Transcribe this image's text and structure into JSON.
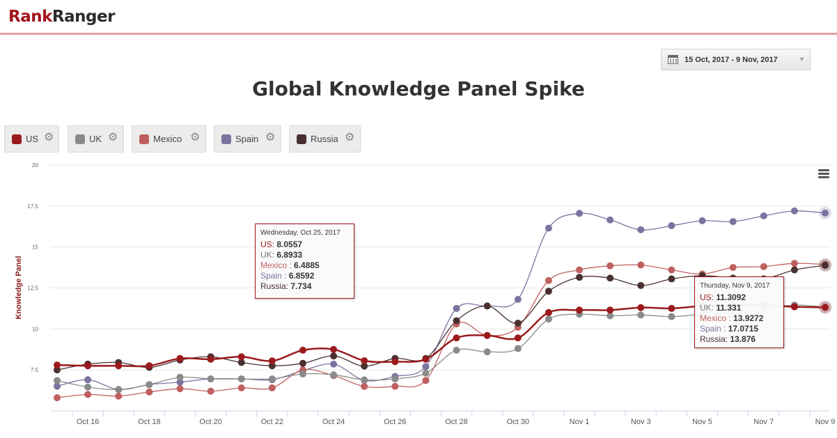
{
  "brand": {
    "part1": "Rank",
    "part2": "Ranger"
  },
  "date_range": "15 Oct, 2017 - 9 Nov, 2017",
  "legend": [
    {
      "name": "US",
      "color": "#9a1a1e"
    },
    {
      "name": "UK",
      "color": "#8a8a8a"
    },
    {
      "name": "Mexico",
      "color": "#c06060"
    },
    {
      "name": "Spain",
      "color": "#7b73a0"
    },
    {
      "name": "Russia",
      "color": "#4a3030"
    }
  ],
  "tooltip1": {
    "header": "Wednesday, Oct 25, 2017",
    "rows": [
      {
        "label": "US: ",
        "value": "8.0557"
      },
      {
        "label": "UK: ",
        "value": "6.8933"
      },
      {
        "label": "Mexico : ",
        "value": "6.4885"
      },
      {
        "label": "Spain : ",
        "value": "6.8592"
      },
      {
        "label": "Russia: ",
        "value": "7.734"
      }
    ]
  },
  "tooltip2": {
    "header": "Thursday, Nov 9, 2017",
    "rows": [
      {
        "label": "US: ",
        "value": "11.3092"
      },
      {
        "label": "UK: ",
        "value": "11.331"
      },
      {
        "label": "Mexico : ",
        "value": "13.9272"
      },
      {
        "label": "Spain : ",
        "value": "17.0715"
      },
      {
        "label": "Russia: ",
        "value": "13.876"
      }
    ]
  },
  "chart_data": {
    "type": "line",
    "title": "Global Knowledge Panel Spike",
    "ylabel": "Knowledge Panel",
    "xlabel": "",
    "ylim": [
      5,
      20
    ],
    "yticks": [
      "20",
      "17.5",
      "15",
      "12.5",
      "10",
      "7.5"
    ],
    "grid": true,
    "x": [
      "Oct 15",
      "Oct 16",
      "Oct 17",
      "Oct 18",
      "Oct 19",
      "Oct 20",
      "Oct 21",
      "Oct 22",
      "Oct 23",
      "Oct 24",
      "Oct 25",
      "Oct 26",
      "Oct 27",
      "Oct 28",
      "Oct 29",
      "Oct 30",
      "Oct 31",
      "Nov 1",
      "Nov 2",
      "Nov 3",
      "Nov 4",
      "Nov 5",
      "Nov 6",
      "Nov 7",
      "Nov 8",
      "Nov 9"
    ],
    "xtick_labels": [
      "Oct 16",
      "Oct 18",
      "Oct 20",
      "Oct 22",
      "Oct 24",
      "Oct 26",
      "Oct 28",
      "Oct 30",
      "Nov 1",
      "Nov 3",
      "Nov 5",
      "Nov 7",
      "Nov 9"
    ],
    "series": [
      {
        "name": "US",
        "color": "#9a1a1e",
        "values": [
          7.8,
          7.75,
          7.75,
          7.75,
          8.2,
          8.15,
          8.3,
          8.05,
          8.7,
          8.75,
          8.06,
          8.0,
          8.15,
          9.45,
          9.6,
          9.45,
          11.0,
          11.15,
          11.15,
          11.3,
          11.25,
          11.4,
          11.45,
          11.45,
          11.35,
          11.31
        ]
      },
      {
        "name": "UK",
        "color": "#8a8a8a",
        "values": [
          6.85,
          6.45,
          6.3,
          6.6,
          7.05,
          6.95,
          6.95,
          6.95,
          7.25,
          7.2,
          6.89,
          6.95,
          7.3,
          8.7,
          8.6,
          8.8,
          10.6,
          10.9,
          10.8,
          10.85,
          10.75,
          10.9,
          11.05,
          11.2,
          11.45,
          11.33
        ]
      },
      {
        "name": "Mexico",
        "color": "#c06060",
        "values": [
          5.8,
          6.0,
          5.9,
          6.15,
          6.35,
          6.2,
          6.4,
          6.4,
          7.5,
          7.15,
          6.49,
          6.5,
          6.85,
          10.3,
          9.6,
          10.1,
          12.95,
          13.6,
          13.85,
          13.9,
          13.6,
          13.35,
          13.75,
          13.8,
          14.0,
          13.93
        ]
      },
      {
        "name": "Spain",
        "color": "#7b73a0",
        "values": [
          6.5,
          6.9,
          6.3,
          6.6,
          6.75,
          6.95,
          6.95,
          6.9,
          7.45,
          7.85,
          6.86,
          7.1,
          7.7,
          11.25,
          11.4,
          11.8,
          16.15,
          17.05,
          16.65,
          16.05,
          16.3,
          16.6,
          16.55,
          16.9,
          17.2,
          17.07
        ]
      },
      {
        "name": "Russia",
        "color": "#4a3030",
        "values": [
          7.5,
          7.85,
          7.95,
          7.65,
          8.1,
          8.3,
          7.95,
          7.75,
          7.9,
          8.35,
          7.73,
          8.2,
          8.2,
          10.5,
          11.4,
          10.35,
          12.3,
          13.15,
          13.1,
          12.65,
          13.05,
          13.25,
          13.1,
          13.05,
          13.6,
          13.88
        ]
      }
    ]
  }
}
